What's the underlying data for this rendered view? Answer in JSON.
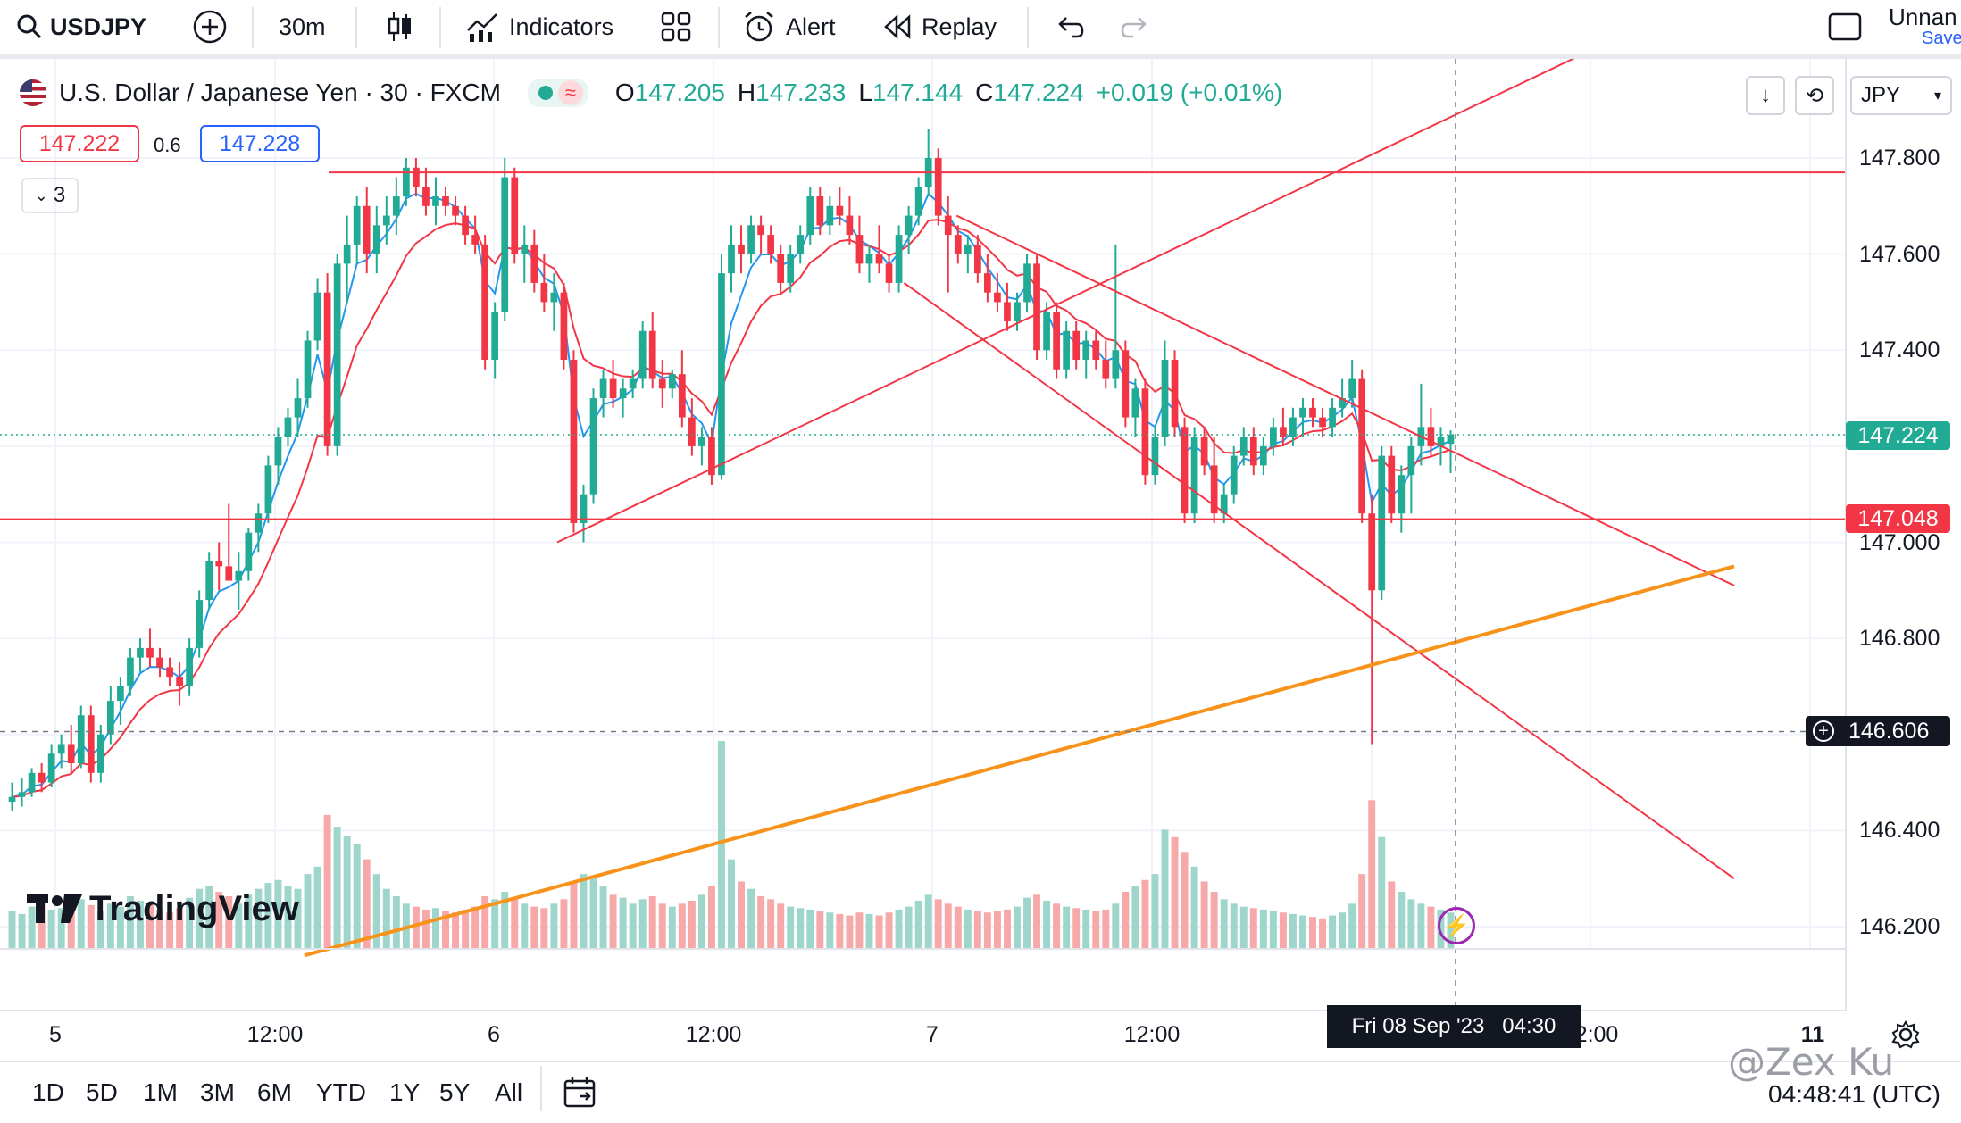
{
  "toolbar": {
    "symbol": "USDJPY",
    "interval": "30m",
    "indicators_label": "Indicators",
    "alert_label": "Alert",
    "replay_label": "Replay",
    "layout_name": "Unnan",
    "save_label": "Save"
  },
  "legend": {
    "title": "U.S. Dollar / Japanese Yen · 30 · FXCM",
    "o_label": "O",
    "o_val": "147.205",
    "h_label": "H",
    "h_val": "147.233",
    "l_label": "L",
    "l_val": "147.144",
    "c_label": "C",
    "c_val": "147.224",
    "change": "+0.019 (+0.01%)",
    "sell_price": "147.222",
    "spread": "0.6",
    "buy_price": "147.228",
    "indicators_count": "3",
    "currency": "JPY"
  },
  "price_axis": {
    "ticks": [
      "147.800",
      "147.600",
      "147.400",
      "147.000",
      "146.800",
      "146.400",
      "146.200"
    ],
    "current_price": "147.224",
    "line_price": "147.048",
    "crosshair_price": "146.606"
  },
  "time_axis": {
    "ticks": [
      "5",
      "12:00",
      "6",
      "12:00",
      "7",
      "12:00",
      "2:00",
      "11"
    ],
    "crosshair_time": "Fri 08 Sep '23   04:30"
  },
  "bottom": {
    "ranges": [
      "1D",
      "5D",
      "1M",
      "3M",
      "6M",
      "YTD",
      "1Y",
      "5Y",
      "All"
    ],
    "clock": "04:48:41 (UTC)",
    "watermark": "@Zex Ku",
    "brand": "TradingView"
  },
  "colors": {
    "up": "#22ab94",
    "down": "#f23645",
    "up_volume": "#9fd6cc",
    "down_volume": "#f7a9a9",
    "ma_fast": "#2196f3",
    "ma_slow": "#f23645",
    "trendline_red": "#f23645",
    "trendline_orange": "#f7931a"
  },
  "chart_data": {
    "type": "candlestick",
    "symbol": "USDJPY",
    "interval": "30",
    "ylim": [
      146.15,
      147.92
    ],
    "price_lines": [
      147.77,
      147.048
    ],
    "crosshair_price": 146.606,
    "trendlines": [
      {
        "color": "red",
        "points": [
          [
            0.302,
            147.0
          ],
          [
            0.86,
            148.02
          ]
        ]
      },
      {
        "color": "red",
        "points": [
          [
            0.5185,
            147.68
          ],
          [
            0.94,
            146.91
          ]
        ]
      },
      {
        "color": "red",
        "points": [
          [
            0.49,
            147.54
          ],
          [
            0.94,
            146.3
          ]
        ]
      },
      {
        "color": "orange",
        "points": [
          [
            0.165,
            146.14
          ],
          [
            0.94,
            146.95
          ]
        ]
      }
    ],
    "candles": [
      {
        "o": 146.46,
        "h": 146.5,
        "l": 146.44,
        "c": 146.47,
        "v": 0.25
      },
      {
        "o": 146.47,
        "h": 146.51,
        "l": 146.45,
        "c": 146.48,
        "v": 0.23
      },
      {
        "o": 146.48,
        "h": 146.53,
        "l": 146.47,
        "c": 146.52,
        "v": 0.28
      },
      {
        "o": 146.52,
        "h": 146.54,
        "l": 146.48,
        "c": 146.5,
        "v": 0.3
      },
      {
        "o": 146.5,
        "h": 146.58,
        "l": 146.49,
        "c": 146.56,
        "v": 0.26
      },
      {
        "o": 146.56,
        "h": 146.6,
        "l": 146.53,
        "c": 146.58,
        "v": 0.27
      },
      {
        "o": 146.58,
        "h": 146.62,
        "l": 146.52,
        "c": 146.54,
        "v": 0.31
      },
      {
        "o": 146.54,
        "h": 146.66,
        "l": 146.53,
        "c": 146.64,
        "v": 0.33
      },
      {
        "o": 146.64,
        "h": 146.66,
        "l": 146.5,
        "c": 146.52,
        "v": 0.29
      },
      {
        "o": 146.52,
        "h": 146.62,
        "l": 146.5,
        "c": 146.6,
        "v": 0.25
      },
      {
        "o": 146.6,
        "h": 146.7,
        "l": 146.58,
        "c": 146.67,
        "v": 0.3
      },
      {
        "o": 146.67,
        "h": 146.72,
        "l": 146.62,
        "c": 146.7,
        "v": 0.28
      },
      {
        "o": 146.7,
        "h": 146.78,
        "l": 146.68,
        "c": 146.76,
        "v": 0.35
      },
      {
        "o": 146.76,
        "h": 146.8,
        "l": 146.73,
        "c": 146.78,
        "v": 0.32
      },
      {
        "o": 146.78,
        "h": 146.82,
        "l": 146.74,
        "c": 146.76,
        "v": 0.3
      },
      {
        "o": 146.76,
        "h": 146.78,
        "l": 146.72,
        "c": 146.74,
        "v": 0.26
      },
      {
        "o": 146.74,
        "h": 146.76,
        "l": 146.7,
        "c": 146.72,
        "v": 0.24
      },
      {
        "o": 146.72,
        "h": 146.75,
        "l": 146.66,
        "c": 146.7,
        "v": 0.27
      },
      {
        "o": 146.7,
        "h": 146.8,
        "l": 146.68,
        "c": 146.78,
        "v": 0.34
      },
      {
        "o": 146.78,
        "h": 146.9,
        "l": 146.76,
        "c": 146.88,
        "v": 0.4
      },
      {
        "o": 146.88,
        "h": 146.98,
        "l": 146.86,
        "c": 146.96,
        "v": 0.42
      },
      {
        "o": 146.96,
        "h": 147.0,
        "l": 146.9,
        "c": 146.95,
        "v": 0.38
      },
      {
        "o": 146.95,
        "h": 147.08,
        "l": 146.93,
        "c": 146.92,
        "v": 0.35
      },
      {
        "o": 146.92,
        "h": 146.98,
        "l": 146.86,
        "c": 146.94,
        "v": 0.3
      },
      {
        "o": 146.94,
        "h": 147.03,
        "l": 146.92,
        "c": 147.02,
        "v": 0.36
      },
      {
        "o": 147.02,
        "h": 147.08,
        "l": 146.98,
        "c": 147.06,
        "v": 0.4
      },
      {
        "o": 147.06,
        "h": 147.18,
        "l": 147.04,
        "c": 147.16,
        "v": 0.44
      },
      {
        "o": 147.16,
        "h": 147.24,
        "l": 147.12,
        "c": 147.22,
        "v": 0.46
      },
      {
        "o": 147.22,
        "h": 147.28,
        "l": 147.2,
        "c": 147.26,
        "v": 0.42
      },
      {
        "o": 147.26,
        "h": 147.34,
        "l": 147.22,
        "c": 147.3,
        "v": 0.4
      },
      {
        "o": 147.3,
        "h": 147.44,
        "l": 147.28,
        "c": 147.42,
        "v": 0.5
      },
      {
        "o": 147.42,
        "h": 147.55,
        "l": 147.4,
        "c": 147.52,
        "v": 0.55
      },
      {
        "o": 147.52,
        "h": 147.56,
        "l": 147.18,
        "c": 147.2,
        "v": 0.9
      },
      {
        "o": 147.2,
        "h": 147.6,
        "l": 147.18,
        "c": 147.58,
        "v": 0.82
      },
      {
        "o": 147.58,
        "h": 147.68,
        "l": 147.5,
        "c": 147.62,
        "v": 0.76
      },
      {
        "o": 147.62,
        "h": 147.72,
        "l": 147.58,
        "c": 147.7,
        "v": 0.7
      },
      {
        "o": 147.7,
        "h": 147.74,
        "l": 147.56,
        "c": 147.6,
        "v": 0.6
      },
      {
        "o": 147.6,
        "h": 147.7,
        "l": 147.56,
        "c": 147.66,
        "v": 0.5
      },
      {
        "o": 147.66,
        "h": 147.72,
        "l": 147.62,
        "c": 147.68,
        "v": 0.4
      },
      {
        "o": 147.68,
        "h": 147.76,
        "l": 147.64,
        "c": 147.72,
        "v": 0.35
      },
      {
        "o": 147.72,
        "h": 147.8,
        "l": 147.7,
        "c": 147.78,
        "v": 0.3
      },
      {
        "o": 147.78,
        "h": 147.8,
        "l": 147.72,
        "c": 147.74,
        "v": 0.28
      },
      {
        "o": 147.74,
        "h": 147.78,
        "l": 147.68,
        "c": 147.7,
        "v": 0.26
      },
      {
        "o": 147.7,
        "h": 147.76,
        "l": 147.66,
        "c": 147.72,
        "v": 0.27
      },
      {
        "o": 147.72,
        "h": 147.74,
        "l": 147.68,
        "c": 147.7,
        "v": 0.25
      },
      {
        "o": 147.7,
        "h": 147.72,
        "l": 147.66,
        "c": 147.68,
        "v": 0.24
      },
      {
        "o": 147.68,
        "h": 147.7,
        "l": 147.62,
        "c": 147.64,
        "v": 0.26
      },
      {
        "o": 147.64,
        "h": 147.68,
        "l": 147.6,
        "c": 147.62,
        "v": 0.28
      },
      {
        "o": 147.62,
        "h": 147.64,
        "l": 147.36,
        "c": 147.38,
        "v": 0.35
      },
      {
        "o": 147.38,
        "h": 147.5,
        "l": 147.34,
        "c": 147.48,
        "v": 0.33
      },
      {
        "o": 147.48,
        "h": 147.8,
        "l": 147.46,
        "c": 147.76,
        "v": 0.38
      },
      {
        "o": 147.76,
        "h": 147.78,
        "l": 147.58,
        "c": 147.6,
        "v": 0.34
      },
      {
        "o": 147.6,
        "h": 147.66,
        "l": 147.54,
        "c": 147.62,
        "v": 0.3
      },
      {
        "o": 147.62,
        "h": 147.65,
        "l": 147.52,
        "c": 147.54,
        "v": 0.28
      },
      {
        "o": 147.54,
        "h": 147.6,
        "l": 147.48,
        "c": 147.5,
        "v": 0.27
      },
      {
        "o": 147.5,
        "h": 147.56,
        "l": 147.44,
        "c": 147.52,
        "v": 0.3
      },
      {
        "o": 147.52,
        "h": 147.54,
        "l": 147.36,
        "c": 147.38,
        "v": 0.33
      },
      {
        "o": 147.38,
        "h": 147.4,
        "l": 147.02,
        "c": 147.04,
        "v": 0.45
      },
      {
        "o": 147.04,
        "h": 147.12,
        "l": 147.0,
        "c": 147.1,
        "v": 0.5
      },
      {
        "o": 147.1,
        "h": 147.32,
        "l": 147.08,
        "c": 147.3,
        "v": 0.48
      },
      {
        "o": 147.3,
        "h": 147.36,
        "l": 147.26,
        "c": 147.34,
        "v": 0.42
      },
      {
        "o": 147.34,
        "h": 147.38,
        "l": 147.28,
        "c": 147.3,
        "v": 0.36
      },
      {
        "o": 147.3,
        "h": 147.34,
        "l": 147.26,
        "c": 147.32,
        "v": 0.34
      },
      {
        "o": 147.32,
        "h": 147.36,
        "l": 147.3,
        "c": 147.34,
        "v": 0.3
      },
      {
        "o": 147.34,
        "h": 147.46,
        "l": 147.32,
        "c": 147.44,
        "v": 0.33
      },
      {
        "o": 147.44,
        "h": 147.48,
        "l": 147.32,
        "c": 147.34,
        "v": 0.35
      },
      {
        "o": 147.34,
        "h": 147.38,
        "l": 147.28,
        "c": 147.32,
        "v": 0.3
      },
      {
        "o": 147.32,
        "h": 147.36,
        "l": 147.3,
        "c": 147.35,
        "v": 0.28
      },
      {
        "o": 147.35,
        "h": 147.4,
        "l": 147.24,
        "c": 147.26,
        "v": 0.3
      },
      {
        "o": 147.26,
        "h": 147.3,
        "l": 147.18,
        "c": 147.2,
        "v": 0.32
      },
      {
        "o": 147.2,
        "h": 147.24,
        "l": 147.16,
        "c": 147.22,
        "v": 0.36
      },
      {
        "o": 147.22,
        "h": 147.24,
        "l": 147.12,
        "c": 147.14,
        "v": 0.42
      },
      {
        "o": 147.14,
        "h": 147.6,
        "l": 147.13,
        "c": 147.56,
        "v": 1.4
      },
      {
        "o": 147.56,
        "h": 147.66,
        "l": 147.52,
        "c": 147.62,
        "v": 0.6
      },
      {
        "o": 147.62,
        "h": 147.66,
        "l": 147.56,
        "c": 147.6,
        "v": 0.45
      },
      {
        "o": 147.6,
        "h": 147.68,
        "l": 147.58,
        "c": 147.66,
        "v": 0.4
      },
      {
        "o": 147.66,
        "h": 147.68,
        "l": 147.6,
        "c": 147.64,
        "v": 0.35
      },
      {
        "o": 147.64,
        "h": 147.66,
        "l": 147.58,
        "c": 147.6,
        "v": 0.33
      },
      {
        "o": 147.6,
        "h": 147.62,
        "l": 147.52,
        "c": 147.54,
        "v": 0.3
      },
      {
        "o": 147.54,
        "h": 147.62,
        "l": 147.52,
        "c": 147.6,
        "v": 0.28
      },
      {
        "o": 147.6,
        "h": 147.66,
        "l": 147.58,
        "c": 147.64,
        "v": 0.27
      },
      {
        "o": 147.64,
        "h": 147.74,
        "l": 147.62,
        "c": 147.72,
        "v": 0.26
      },
      {
        "o": 147.72,
        "h": 147.74,
        "l": 147.64,
        "c": 147.66,
        "v": 0.25
      },
      {
        "o": 147.66,
        "h": 147.72,
        "l": 147.64,
        "c": 147.7,
        "v": 0.24
      },
      {
        "o": 147.7,
        "h": 147.74,
        "l": 147.66,
        "c": 147.68,
        "v": 0.23
      },
      {
        "o": 147.68,
        "h": 147.72,
        "l": 147.62,
        "c": 147.64,
        "v": 0.22
      },
      {
        "o": 147.64,
        "h": 147.68,
        "l": 147.56,
        "c": 147.58,
        "v": 0.24
      },
      {
        "o": 147.58,
        "h": 147.62,
        "l": 147.54,
        "c": 147.6,
        "v": 0.23
      },
      {
        "o": 147.6,
        "h": 147.66,
        "l": 147.56,
        "c": 147.58,
        "v": 0.22
      },
      {
        "o": 147.58,
        "h": 147.6,
        "l": 147.52,
        "c": 147.54,
        "v": 0.24
      },
      {
        "o": 147.54,
        "h": 147.66,
        "l": 147.52,
        "c": 147.64,
        "v": 0.26
      },
      {
        "o": 147.64,
        "h": 147.7,
        "l": 147.6,
        "c": 147.68,
        "v": 0.28
      },
      {
        "o": 147.68,
        "h": 147.76,
        "l": 147.66,
        "c": 147.74,
        "v": 0.32
      },
      {
        "o": 147.74,
        "h": 147.86,
        "l": 147.72,
        "c": 147.8,
        "v": 0.36
      },
      {
        "o": 147.8,
        "h": 147.82,
        "l": 147.66,
        "c": 147.68,
        "v": 0.33
      },
      {
        "o": 147.68,
        "h": 147.72,
        "l": 147.52,
        "c": 147.64,
        "v": 0.3
      },
      {
        "o": 147.64,
        "h": 147.66,
        "l": 147.58,
        "c": 147.6,
        "v": 0.28
      },
      {
        "o": 147.6,
        "h": 147.64,
        "l": 147.56,
        "c": 147.62,
        "v": 0.26
      },
      {
        "o": 147.62,
        "h": 147.64,
        "l": 147.54,
        "c": 147.56,
        "v": 0.25
      },
      {
        "o": 147.56,
        "h": 147.6,
        "l": 147.5,
        "c": 147.52,
        "v": 0.24
      },
      {
        "o": 147.52,
        "h": 147.56,
        "l": 147.48,
        "c": 147.5,
        "v": 0.25
      },
      {
        "o": 147.5,
        "h": 147.54,
        "l": 147.44,
        "c": 147.46,
        "v": 0.26
      },
      {
        "o": 147.46,
        "h": 147.52,
        "l": 147.44,
        "c": 147.5,
        "v": 0.28
      },
      {
        "o": 147.5,
        "h": 147.6,
        "l": 147.48,
        "c": 147.58,
        "v": 0.34
      },
      {
        "o": 147.58,
        "h": 147.6,
        "l": 147.38,
        "c": 147.4,
        "v": 0.36
      },
      {
        "o": 147.4,
        "h": 147.5,
        "l": 147.38,
        "c": 147.48,
        "v": 0.32
      },
      {
        "o": 147.48,
        "h": 147.5,
        "l": 147.34,
        "c": 147.36,
        "v": 0.3
      },
      {
        "o": 147.36,
        "h": 147.46,
        "l": 147.34,
        "c": 147.44,
        "v": 0.28
      },
      {
        "o": 147.44,
        "h": 147.46,
        "l": 147.36,
        "c": 147.38,
        "v": 0.27
      },
      {
        "o": 147.38,
        "h": 147.44,
        "l": 147.34,
        "c": 147.42,
        "v": 0.26
      },
      {
        "o": 147.42,
        "h": 147.44,
        "l": 147.36,
        "c": 147.38,
        "v": 0.25
      },
      {
        "o": 147.38,
        "h": 147.42,
        "l": 147.32,
        "c": 147.34,
        "v": 0.26
      },
      {
        "o": 147.34,
        "h": 147.62,
        "l": 147.32,
        "c": 147.4,
        "v": 0.3
      },
      {
        "o": 147.4,
        "h": 147.42,
        "l": 147.24,
        "c": 147.26,
        "v": 0.38
      },
      {
        "o": 147.26,
        "h": 147.34,
        "l": 147.22,
        "c": 147.32,
        "v": 0.42
      },
      {
        "o": 147.32,
        "h": 147.34,
        "l": 147.12,
        "c": 147.14,
        "v": 0.46
      },
      {
        "o": 147.14,
        "h": 147.24,
        "l": 147.12,
        "c": 147.22,
        "v": 0.5
      },
      {
        "o": 147.22,
        "h": 147.42,
        "l": 147.2,
        "c": 147.38,
        "v": 0.8
      },
      {
        "o": 147.38,
        "h": 147.4,
        "l": 147.22,
        "c": 147.24,
        "v": 0.75
      },
      {
        "o": 147.24,
        "h": 147.26,
        "l": 147.04,
        "c": 147.06,
        "v": 0.65
      },
      {
        "o": 147.06,
        "h": 147.24,
        "l": 147.04,
        "c": 147.22,
        "v": 0.55
      },
      {
        "o": 147.22,
        "h": 147.24,
        "l": 147.14,
        "c": 147.16,
        "v": 0.45
      },
      {
        "o": 147.16,
        "h": 147.22,
        "l": 147.04,
        "c": 147.06,
        "v": 0.38
      },
      {
        "o": 147.06,
        "h": 147.12,
        "l": 147.04,
        "c": 147.1,
        "v": 0.33
      },
      {
        "o": 147.1,
        "h": 147.2,
        "l": 147.08,
        "c": 147.18,
        "v": 0.3
      },
      {
        "o": 147.18,
        "h": 147.24,
        "l": 147.16,
        "c": 147.22,
        "v": 0.28
      },
      {
        "o": 147.22,
        "h": 147.24,
        "l": 147.14,
        "c": 147.16,
        "v": 0.27
      },
      {
        "o": 147.16,
        "h": 147.22,
        "l": 147.14,
        "c": 147.2,
        "v": 0.26
      },
      {
        "o": 147.2,
        "h": 147.26,
        "l": 147.18,
        "c": 147.24,
        "v": 0.25
      },
      {
        "o": 147.24,
        "h": 147.28,
        "l": 147.2,
        "c": 147.22,
        "v": 0.24
      },
      {
        "o": 147.22,
        "h": 147.28,
        "l": 147.2,
        "c": 147.26,
        "v": 0.23
      },
      {
        "o": 147.26,
        "h": 147.3,
        "l": 147.22,
        "c": 147.28,
        "v": 0.22
      },
      {
        "o": 147.28,
        "h": 147.3,
        "l": 147.24,
        "c": 147.26,
        "v": 0.21
      },
      {
        "o": 147.26,
        "h": 147.28,
        "l": 147.22,
        "c": 147.24,
        "v": 0.2
      },
      {
        "o": 147.24,
        "h": 147.3,
        "l": 147.22,
        "c": 147.28,
        "v": 0.22
      },
      {
        "o": 147.28,
        "h": 147.34,
        "l": 147.26,
        "c": 147.3,
        "v": 0.24
      },
      {
        "o": 147.3,
        "h": 147.38,
        "l": 147.28,
        "c": 147.34,
        "v": 0.3
      },
      {
        "o": 147.34,
        "h": 147.36,
        "l": 147.04,
        "c": 147.06,
        "v": 0.5
      },
      {
        "o": 147.06,
        "h": 147.1,
        "l": 146.58,
        "c": 146.9,
        "v": 1.0
      },
      {
        "o": 146.9,
        "h": 147.2,
        "l": 146.88,
        "c": 147.18,
        "v": 0.75
      },
      {
        "o": 147.18,
        "h": 147.2,
        "l": 147.04,
        "c": 147.06,
        "v": 0.45
      },
      {
        "o": 147.06,
        "h": 147.16,
        "l": 147.02,
        "c": 147.14,
        "v": 0.38
      },
      {
        "o": 147.14,
        "h": 147.22,
        "l": 147.06,
        "c": 147.2,
        "v": 0.33
      },
      {
        "o": 147.2,
        "h": 147.33,
        "l": 147.16,
        "c": 147.24,
        "v": 0.3
      },
      {
        "o": 147.24,
        "h": 147.28,
        "l": 147.18,
        "c": 147.2,
        "v": 0.28
      },
      {
        "o": 147.2,
        "h": 147.24,
        "l": 147.16,
        "c": 147.22,
        "v": 0.26
      },
      {
        "o": 147.205,
        "h": 147.233,
        "l": 147.144,
        "c": 147.224,
        "v": 0.24
      }
    ]
  }
}
